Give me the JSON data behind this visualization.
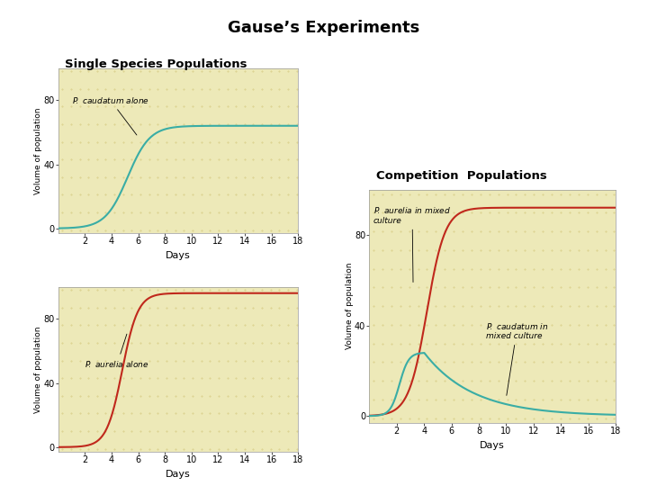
{
  "title": "Gause’s Experiments",
  "label_single": "Single Species Populations",
  "label_competition": "Competition  Populations",
  "plot_bg": "#ede9b8",
  "cyan_color": "#3aada5",
  "red_color": "#c0281c",
  "ylabel": "Volume of population",
  "xlabel": "Days",
  "xticks": [
    2,
    4,
    6,
    8,
    10,
    12,
    14,
    16,
    18
  ],
  "yticks_single": [
    0,
    40,
    80
  ],
  "white": "#ffffff",
  "black": "#000000",
  "dot_color": "#d4c87a"
}
